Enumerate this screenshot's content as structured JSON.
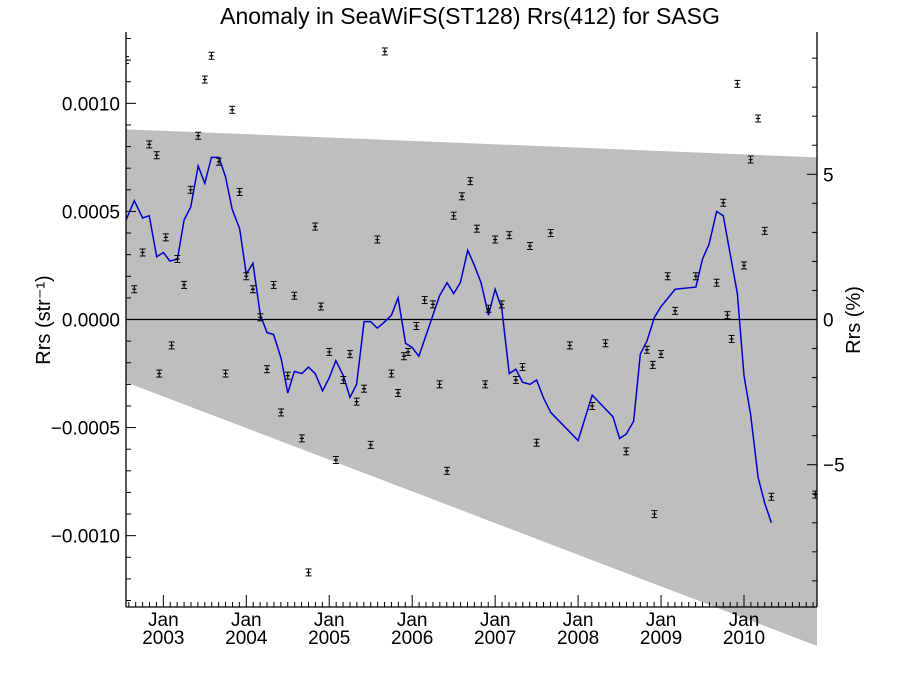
{
  "chart_data": {
    "type": "line",
    "title": "Anomaly in SeaWiFS(ST128) Rrs(412) for SASG",
    "ylabel_left": "Rrs (str⁻¹)",
    "ylabel_right": "Rrs (%)",
    "xlabel": "",
    "xlim": [
      2002.55,
      2010.88
    ],
    "ylim_left": [
      -0.00133,
      0.00133
    ],
    "ylim_right": [
      -9.9,
      9.9
    ],
    "grid": false,
    "colors": {
      "line": "#0000cc",
      "band": "#bebebe",
      "points": "#000000",
      "zero_line": "#000000"
    },
    "x_ticks": [
      {
        "x": 2003.0,
        "top": "Jan",
        "bottom": "2003"
      },
      {
        "x": 2004.0,
        "top": "Jan",
        "bottom": "2004"
      },
      {
        "x": 2005.0,
        "top": "Jan",
        "bottom": "2005"
      },
      {
        "x": 2006.0,
        "top": "Jan",
        "bottom": "2006"
      },
      {
        "x": 2007.0,
        "top": "Jan",
        "bottom": "2007"
      },
      {
        "x": 2008.0,
        "top": "Jan",
        "bottom": "2008"
      },
      {
        "x": 2009.0,
        "top": "Jan",
        "bottom": "2009"
      },
      {
        "x": 2010.0,
        "top": "Jan",
        "bottom": "2010"
      }
    ],
    "y_ticks_left": [
      {
        "value": 0.001,
        "label": "0.0010"
      },
      {
        "value": 0.0005,
        "label": "0.0005"
      },
      {
        "value": 0.0,
        "label": "0.0000"
      },
      {
        "value": -0.0005,
        "label": "−0.0005"
      },
      {
        "value": -0.001,
        "label": "−0.0010"
      }
    ],
    "y_ticks_right": [
      {
        "value": 5,
        "label": "5"
      },
      {
        "value": 0,
        "label": "0"
      },
      {
        "value": -5,
        "label": "−5"
      }
    ],
    "band": {
      "upper": [
        [
          2002.55,
          0.00088
        ],
        [
          2010.88,
          0.00075
        ]
      ],
      "lower": [
        [
          2002.55,
          -0.00029
        ],
        [
          2010.88,
          -0.00151
        ]
      ]
    },
    "series": [
      {
        "values": [
          [
            2002.55,
            0.00046
          ],
          [
            2002.65,
            0.00055
          ],
          [
            2002.75,
            0.00047
          ],
          [
            2002.83,
            0.00048
          ],
          [
            2002.92,
            0.00029
          ],
          [
            2003.0,
            0.00031
          ],
          [
            2003.08,
            0.00027
          ],
          [
            2003.17,
            0.00028
          ],
          [
            2003.25,
            0.00046
          ],
          [
            2003.33,
            0.00052
          ],
          [
            2003.42,
            0.00071
          ],
          [
            2003.5,
            0.00063
          ],
          [
            2003.58,
            0.00075
          ],
          [
            2003.67,
            0.00075
          ],
          [
            2003.75,
            0.00066
          ],
          [
            2003.83,
            0.00051
          ],
          [
            2003.92,
            0.00042
          ],
          [
            2004.0,
            0.00021
          ],
          [
            2004.08,
            0.00026
          ],
          [
            2004.17,
            2e-05
          ],
          [
            2004.25,
            -6e-05
          ],
          [
            2004.33,
            -7e-05
          ],
          [
            2004.42,
            -0.00018
          ],
          [
            2004.5,
            -0.00034
          ],
          [
            2004.58,
            -0.00024
          ],
          [
            2004.67,
            -0.00025
          ],
          [
            2004.75,
            -0.00022
          ],
          [
            2004.83,
            -0.00025
          ],
          [
            2004.92,
            -0.00033
          ],
          [
            2005.0,
            -0.00027
          ],
          [
            2005.08,
            -0.00019
          ],
          [
            2005.17,
            -0.00026
          ],
          [
            2005.25,
            -0.00036
          ],
          [
            2005.33,
            -0.0003
          ],
          [
            2005.42,
            -1e-05
          ],
          [
            2005.5,
            -1e-05
          ],
          [
            2005.58,
            -4e-05
          ],
          [
            2005.67,
            -1e-05
          ],
          [
            2005.75,
            2e-05
          ],
          [
            2005.83,
            0.0001
          ],
          [
            2005.92,
            -0.00011
          ],
          [
            2006.0,
            -0.00013
          ],
          [
            2006.08,
            -0.00017
          ],
          [
            2006.17,
            -7e-05
          ],
          [
            2006.25,
            2e-05
          ],
          [
            2006.33,
            0.00011
          ],
          [
            2006.42,
            0.00017
          ],
          [
            2006.5,
            0.00012
          ],
          [
            2006.58,
            0.00017
          ],
          [
            2006.67,
            0.00032
          ],
          [
            2006.75,
            0.00025
          ],
          [
            2006.83,
            0.00017
          ],
          [
            2006.92,
            2e-05
          ],
          [
            2007.0,
            0.00014
          ],
          [
            2007.08,
            5e-05
          ],
          [
            2007.17,
            -0.00025
          ],
          [
            2007.25,
            -0.00023
          ],
          [
            2007.33,
            -0.00029
          ],
          [
            2007.42,
            -0.0003
          ],
          [
            2007.5,
            -0.00028
          ],
          [
            2007.58,
            -0.00036
          ],
          [
            2007.67,
            -0.00043
          ],
          [
            2008.0,
            -0.00056
          ],
          [
            2008.17,
            -0.00035
          ],
          [
            2008.42,
            -0.00045
          ],
          [
            2008.5,
            -0.00055
          ],
          [
            2008.58,
            -0.00053
          ],
          [
            2008.67,
            -0.00047
          ],
          [
            2008.75,
            -0.00016
          ],
          [
            2008.83,
            -0.0001
          ],
          [
            2008.92,
            1e-05
          ],
          [
            2009.0,
            6e-05
          ],
          [
            2009.17,
            0.00014
          ],
          [
            2009.42,
            0.00015
          ],
          [
            2009.5,
            0.00028
          ],
          [
            2009.58,
            0.00035
          ],
          [
            2009.67,
            0.0005
          ],
          [
            2009.75,
            0.00048
          ],
          [
            2009.83,
            0.00031
          ],
          [
            2009.92,
            0.00012
          ],
          [
            2010.0,
            -0.00026
          ],
          [
            2010.08,
            -0.00044
          ],
          [
            2010.17,
            -0.00073
          ],
          [
            2010.25,
            -0.00085
          ],
          [
            2010.33,
            -0.00094
          ]
        ]
      },
      {
        "values": [
          [
            2002.55,
            0.0012
          ],
          [
            2002.65,
            0.00014
          ],
          [
            2002.75,
            0.00031
          ],
          [
            2002.83,
            0.00081
          ],
          [
            2002.92,
            0.00076
          ],
          [
            2002.95,
            -0.00025
          ],
          [
            2003.03,
            0.00038
          ],
          [
            2003.1,
            -0.00012
          ],
          [
            2003.17,
            0.00028
          ],
          [
            2003.25,
            0.00016
          ],
          [
            2003.33,
            0.0006
          ],
          [
            2003.42,
            0.00085
          ],
          [
            2003.5,
            0.00111
          ],
          [
            2003.58,
            0.00122
          ],
          [
            2003.67,
            0.00073
          ],
          [
            2003.75,
            -0.00025
          ],
          [
            2003.83,
            0.00097
          ],
          [
            2003.92,
            0.00059
          ],
          [
            2004.0,
            0.0002
          ],
          [
            2004.08,
            0.00014
          ],
          [
            2004.17,
            1e-05
          ],
          [
            2004.25,
            -0.00023
          ],
          [
            2004.33,
            0.00016
          ],
          [
            2004.42,
            -0.00043
          ],
          [
            2004.5,
            -0.00026
          ],
          [
            2004.58,
            0.00011
          ],
          [
            2004.67,
            -0.00055
          ],
          [
            2004.75,
            -0.00117
          ],
          [
            2004.83,
            0.00043
          ],
          [
            2004.9,
            6e-05
          ],
          [
            2005.0,
            -0.00015
          ],
          [
            2005.08,
            -0.00065
          ],
          [
            2005.17,
            -0.00028
          ],
          [
            2005.25,
            -0.00016
          ],
          [
            2005.33,
            -0.00038
          ],
          [
            2005.42,
            -0.00032
          ],
          [
            2005.5,
            -0.00058
          ],
          [
            2005.58,
            0.00037
          ],
          [
            2005.67,
            0.00124
          ],
          [
            2005.75,
            -0.00025
          ],
          [
            2005.83,
            -0.00034
          ],
          [
            2005.9,
            -0.00017
          ],
          [
            2005.95,
            -0.00015
          ],
          [
            2006.05,
            -3e-05
          ],
          [
            2006.15,
            9e-05
          ],
          [
            2006.25,
            7e-05
          ],
          [
            2006.33,
            -0.0003
          ],
          [
            2006.42,
            -0.0007
          ],
          [
            2006.5,
            0.00048
          ],
          [
            2006.6,
            0.00057
          ],
          [
            2006.7,
            0.00064
          ],
          [
            2006.78,
            0.00042
          ],
          [
            2006.88,
            -0.0003
          ],
          [
            2006.92,
            5e-05
          ],
          [
            2007.0,
            0.00037
          ],
          [
            2007.08,
            7e-05
          ],
          [
            2007.17,
            0.00039
          ],
          [
            2007.25,
            -0.00028
          ],
          [
            2007.33,
            -0.00022
          ],
          [
            2007.42,
            0.00034
          ],
          [
            2007.5,
            -0.00057
          ],
          [
            2007.67,
            0.0004
          ],
          [
            2007.9,
            -0.00012
          ],
          [
            2008.17,
            -0.0004
          ],
          [
            2008.33,
            -0.00011
          ],
          [
            2008.58,
            -0.00061
          ],
          [
            2008.83,
            -0.00014
          ],
          [
            2008.9,
            -0.00021
          ],
          [
            2008.92,
            -0.0009
          ],
          [
            2009.0,
            -0.00016
          ],
          [
            2009.08,
            0.0002
          ],
          [
            2009.17,
            4e-05
          ],
          [
            2009.42,
            0.0002
          ],
          [
            2009.67,
            0.00017
          ],
          [
            2009.75,
            0.00054
          ],
          [
            2009.8,
            2e-05
          ],
          [
            2009.85,
            -9e-05
          ],
          [
            2009.92,
            0.00109
          ],
          [
            2010.0,
            0.00025
          ],
          [
            2010.08,
            0.00074
          ],
          [
            2010.17,
            0.00093
          ],
          [
            2010.25,
            0.00041
          ],
          [
            2010.33,
            -0.00082
          ],
          [
            2010.86,
            -0.00081
          ]
        ]
      }
    ]
  }
}
